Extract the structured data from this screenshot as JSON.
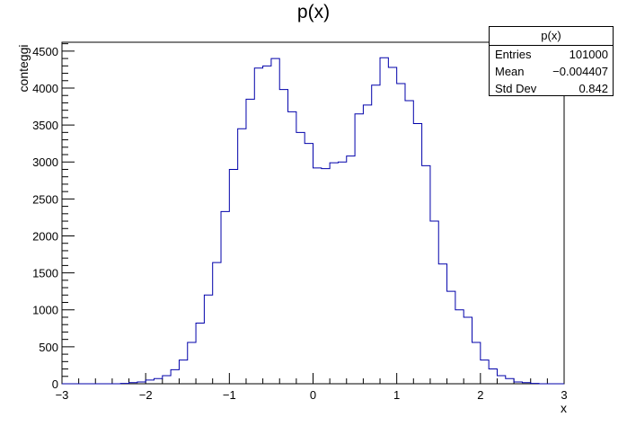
{
  "title": "p(x)",
  "stats_box": {
    "title": "p(x)",
    "rows": [
      {
        "label": "Entries",
        "value": "101000"
      },
      {
        "label": "Mean",
        "value": "−0.004407"
      },
      {
        "label": "Std Dev",
        "value": "0.842"
      }
    ]
  },
  "chart_data": {
    "type": "bar",
    "title": "p(x)",
    "xlabel": "x",
    "ylabel": "conteggi",
    "xlim": [
      -3,
      3
    ],
    "ylim": [
      0,
      4620
    ],
    "grid": false,
    "bins": 60,
    "bin_width": 0.1,
    "x_ticks": [
      "−3",
      "−2",
      "−1",
      "0",
      "1",
      "2",
      "3"
    ],
    "y_ticks": [
      "0",
      "500",
      "1000",
      "1500",
      "2000",
      "2500",
      "3000",
      "3500",
      "4000",
      "4500"
    ],
    "x_tick_values": [
      -3,
      -2,
      -1,
      0,
      1,
      2,
      3
    ],
    "y_tick_values": [
      0,
      500,
      1000,
      1500,
      2000,
      2500,
      3000,
      3500,
      4000,
      4500
    ],
    "values": [
      0,
      0,
      0,
      0,
      0,
      0,
      0,
      5,
      15,
      25,
      50,
      70,
      110,
      190,
      320,
      560,
      820,
      1200,
      1640,
      2330,
      2900,
      3450,
      3850,
      4270,
      4300,
      4400,
      3980,
      3680,
      3400,
      3250,
      2920,
      2910,
      2990,
      3000,
      3080,
      3650,
      3770,
      4040,
      4410,
      4280,
      4060,
      3830,
      3520,
      2950,
      2200,
      1620,
      1250,
      1000,
      900,
      560,
      320,
      200,
      110,
      70,
      25,
      15,
      5,
      0,
      0,
      0
    ],
    "line_color": "#0000aa"
  }
}
